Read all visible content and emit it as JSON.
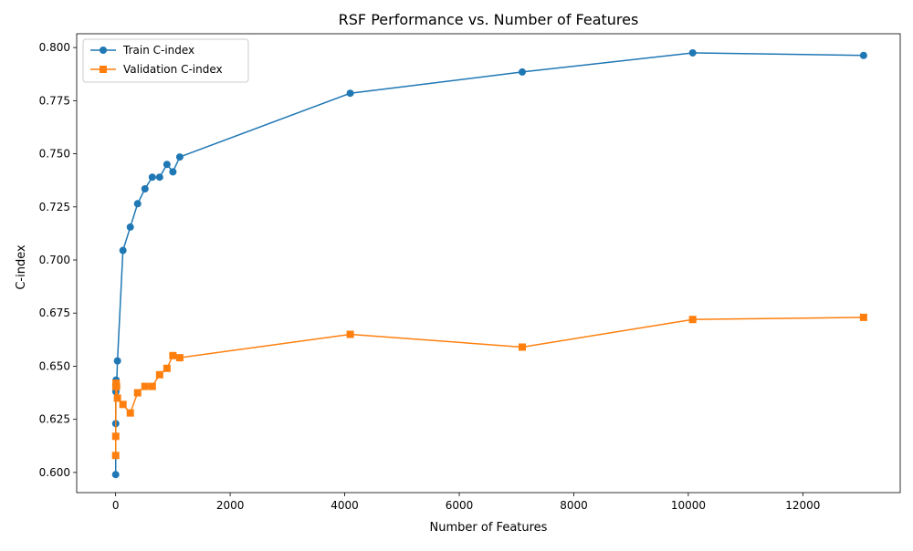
{
  "chart_data": {
    "type": "line",
    "title": "RSF Performance vs. Number of Features",
    "xlabel": "Number of Features",
    "ylabel": "C-index",
    "xlim": [
      -680,
      13700
    ],
    "ylim": [
      0.5905,
      0.8065
    ],
    "xticks": [
      0,
      2000,
      4000,
      6000,
      8000,
      10000,
      12000
    ],
    "xtick_labels": [
      "0",
      "2000",
      "4000",
      "6000",
      "8000",
      "10000",
      "12000"
    ],
    "yticks": [
      0.6,
      0.625,
      0.65,
      0.675,
      0.7,
      0.725,
      0.75,
      0.775,
      0.8
    ],
    "ytick_labels": [
      "0.600",
      "0.625",
      "0.650",
      "0.675",
      "0.700",
      "0.725",
      "0.750",
      "0.775",
      "0.800"
    ],
    "grid": false,
    "legend_position": "top-left",
    "series": [
      {
        "name": "Train C-index",
        "color": "#1f77b4",
        "marker": "circle",
        "x": [
          1,
          2,
          4,
          8,
          16,
          32,
          128,
          256,
          384,
          512,
          640,
          768,
          896,
          1000,
          1120,
          4096,
          7100,
          10076,
          13060
        ],
        "y": [
          0.599,
          0.623,
          0.638,
          0.6435,
          0.6405,
          0.6525,
          0.7045,
          0.7155,
          0.7265,
          0.7335,
          0.739,
          0.739,
          0.745,
          0.7415,
          0.7485,
          0.7785,
          0.7885,
          0.7975,
          0.7963
        ]
      },
      {
        "name": "Validation C-index",
        "color": "#ff7f0e",
        "marker": "square",
        "x": [
          1,
          2,
          4,
          8,
          16,
          32,
          128,
          256,
          384,
          512,
          640,
          768,
          896,
          1000,
          1120,
          4096,
          7100,
          10076,
          13060
        ],
        "y": [
          0.608,
          0.617,
          0.6405,
          0.642,
          0.6405,
          0.635,
          0.632,
          0.628,
          0.6375,
          0.6405,
          0.6405,
          0.646,
          0.649,
          0.655,
          0.654,
          0.665,
          0.659,
          0.672,
          0.673
        ]
      }
    ]
  }
}
